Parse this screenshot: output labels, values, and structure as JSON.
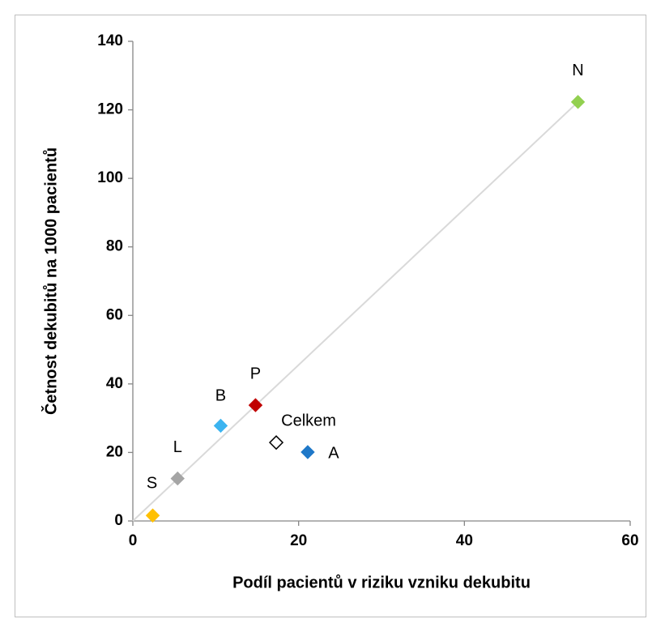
{
  "chart_data": {
    "type": "scatter",
    "xlabel": "Podíl pacientů v riziku vzniku dekubitu",
    "ylabel": "Četnost dekubitů na 1000 pacientů",
    "labels": [
      "S",
      "L",
      "B",
      "P",
      "Celkem",
      "A",
      "N"
    ],
    "x": [
      2.4,
      5.4,
      10.6,
      14.8,
      17.3,
      21.1,
      53.7
    ],
    "values": [
      1.6,
      12.4,
      27.8,
      33.8,
      22.9,
      20.1,
      122.3
    ],
    "colors": [
      "#ffc000",
      "#a5a5a5",
      "#3cb4f0",
      "#c00000",
      "#ffffff",
      "#1f78c8",
      "#92d050"
    ],
    "trendline": {
      "x": [
        0,
        53.7
      ],
      "y": [
        0,
        122.3
      ],
      "color": "#d9d9d9"
    },
    "xlim": [
      0,
      60
    ],
    "xticks": [
      0,
      20,
      40,
      60
    ],
    "ylim": [
      0,
      140
    ],
    "yticks": [
      0,
      20,
      40,
      60,
      80,
      100,
      120,
      140
    ],
    "grid": false
  }
}
